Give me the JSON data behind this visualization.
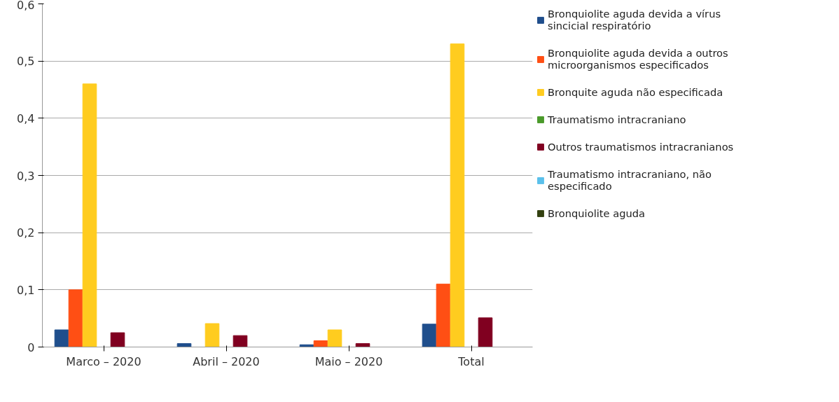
{
  "chart_data": {
    "type": "bar",
    "categories": [
      "Marco – 2020",
      "Abril – 2020",
      "Maio – 2020",
      "Total"
    ],
    "series": [
      {
        "name": "Bronquiolite aguda devida a vírus sincicial respiratório",
        "color": "#1f4e8c",
        "values": [
          0.03,
          0.006,
          0.004,
          0.04
        ]
      },
      {
        "name": "Bronquiolite aguda devida a outros microorganismos especificados",
        "color": "#ff4f14",
        "values": [
          0.1,
          0,
          0.011,
          0.11
        ]
      },
      {
        "name": "Bronquite aguda não especificada",
        "color": "#ffcc1f",
        "values": [
          0.46,
          0.041,
          0.03,
          0.53
        ]
      },
      {
        "name": "Traumatismo intracraniano",
        "color": "#4a9a2a",
        "values": [
          0,
          0,
          0,
          0
        ]
      },
      {
        "name": "Outros traumatismos intracranianos",
        "color": "#800020",
        "values": [
          0.025,
          0.02,
          0.006,
          0.051
        ]
      },
      {
        "name": "Traumatismo intracraniano, não especificado",
        "color": "#5bc0eb",
        "values": [
          0,
          0,
          0,
          0
        ]
      },
      {
        "name": "Bronquiolite aguda",
        "color": "#334010",
        "values": [
          0,
          0,
          0,
          0
        ]
      }
    ],
    "ylim": [
      0,
      0.6
    ],
    "yticks": [
      {
        "value": 0,
        "label": "0"
      },
      {
        "value": 0.1,
        "label": "0,1"
      },
      {
        "value": 0.2,
        "label": "0,2"
      },
      {
        "value": 0.3,
        "label": "0,3"
      },
      {
        "value": 0.4,
        "label": "0,4"
      },
      {
        "value": 0.5,
        "label": "0,5"
      },
      {
        "value": 0.6,
        "label": "0,6"
      }
    ],
    "grid": "y",
    "legend": "right"
  }
}
